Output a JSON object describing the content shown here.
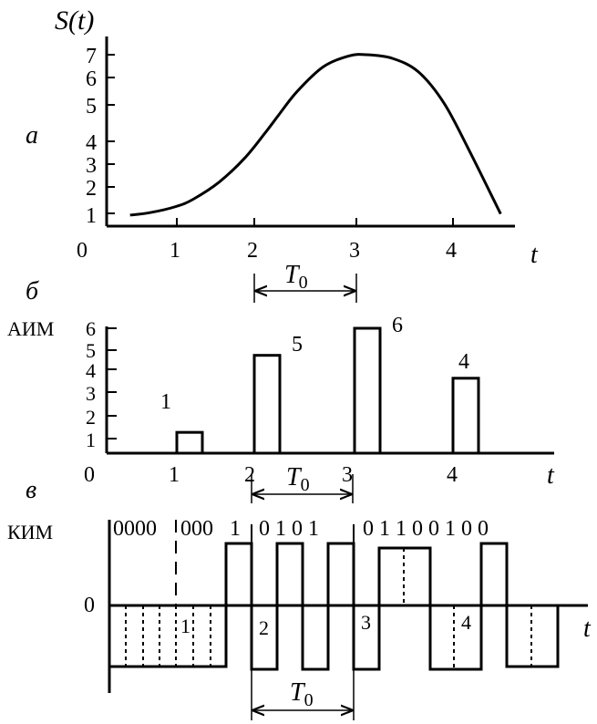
{
  "panels": {
    "a": {
      "label": "а",
      "y_axis_label": "S(t)",
      "y_ticks": [
        "1",
        "2",
        "3",
        "4",
        "5",
        "6",
        "7"
      ],
      "x_ticks": [
        "0",
        "1",
        "2",
        "3",
        "4"
      ],
      "x_axis_label": "t",
      "period_label": "T0"
    },
    "b": {
      "label": "б",
      "y_axis_title": "АИМ",
      "y_ticks": [
        "1",
        "2",
        "3",
        "4",
        "5",
        "6"
      ],
      "x_ticks": [
        "0",
        "1",
        "2",
        "3",
        "4"
      ],
      "x_axis_label": "t",
      "period_label": "T0",
      "pulse_labels": [
        "1",
        "5",
        "6",
        "4"
      ]
    },
    "c": {
      "label": "в",
      "y_axis_title": "КИМ",
      "zero_label": "0",
      "code_groups": [
        "0000",
        "000",
        "1",
        "0 1 0 1",
        "0 1 1 0 0 1 0 0"
      ],
      "sample_markers": [
        "1",
        "2",
        "3",
        "4"
      ],
      "x_axis_label": "t",
      "period_label": "T0"
    }
  },
  "chart_data": [
    {
      "type": "line",
      "title": "",
      "xlabel": "t",
      "ylabel": "S(t)",
      "xlim": [
        0,
        4.6
      ],
      "ylim": [
        0,
        7
      ],
      "x": [
        0.27,
        0.5,
        0.8,
        1.0,
        1.3,
        1.6,
        1.85,
        2.0,
        2.2,
        2.5,
        2.8,
        3.0,
        3.3,
        3.6,
        3.9,
        4.2,
        4.55
      ],
      "series": [
        {
          "values": [
            0.45,
            0.55,
            0.8,
            1.1,
            1.8,
            2.8,
            3.9,
            4.6,
            5.5,
            6.5,
            6.95,
            7.0,
            6.85,
            6.3,
            5.0,
            3.0,
            0.5
          ]
        }
      ]
    },
    {
      "type": "bar",
      "title": "",
      "xlabel": "t",
      "ylabel": "АИМ",
      "ylim": [
        0,
        6
      ],
      "categories": [
        "1",
        "2",
        "3",
        "4"
      ],
      "values": [
        1,
        4.7,
        6,
        3.6
      ]
    }
  ]
}
